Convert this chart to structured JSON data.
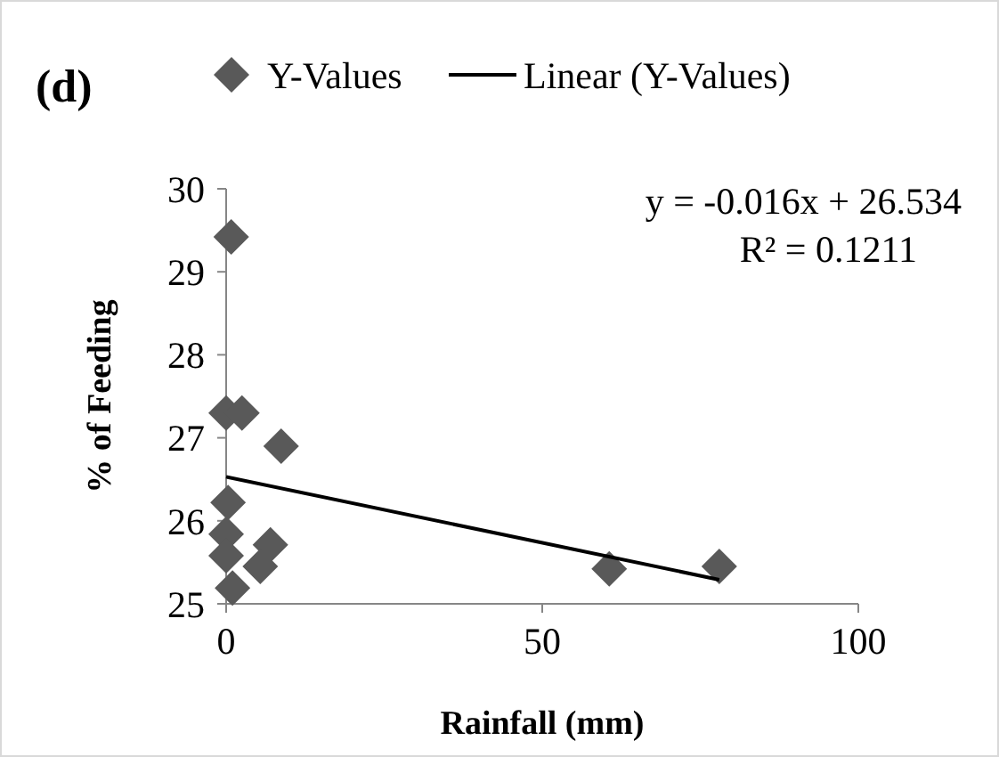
{
  "chart_data": {
    "type": "scatter",
    "title": "(d)",
    "xlabel": "Rainfall (mm)",
    "ylabel": "% of Feeding",
    "xlim": [
      0,
      100
    ],
    "ylim": [
      25,
      30
    ],
    "xticks": [
      0,
      50,
      100
    ],
    "yticks": [
      25,
      26,
      27,
      28,
      29,
      30
    ],
    "grid": false,
    "legend": "top",
    "annotations": [
      "y = -0.016x + 26.534",
      "R² = 0.1211"
    ],
    "series": [
      {
        "name": "Y-Values",
        "marker": "diamond",
        "color": "#595959",
        "x": [
          0.8,
          0,
          2.5,
          8.7,
          0.3,
          0,
          0,
          7,
          5.4,
          1,
          60.6,
          78
        ],
        "values": [
          29.42,
          27.3,
          27.3,
          26.9,
          26.22,
          25.84,
          25.58,
          25.71,
          25.45,
          25.19,
          25.42,
          25.45
        ]
      },
      {
        "name": "Linear (Y-Values)",
        "type": "line",
        "color": "#000000",
        "line_style": "solid",
        "x": [
          0,
          78
        ],
        "values": [
          26.53,
          25.29
        ]
      }
    ]
  }
}
